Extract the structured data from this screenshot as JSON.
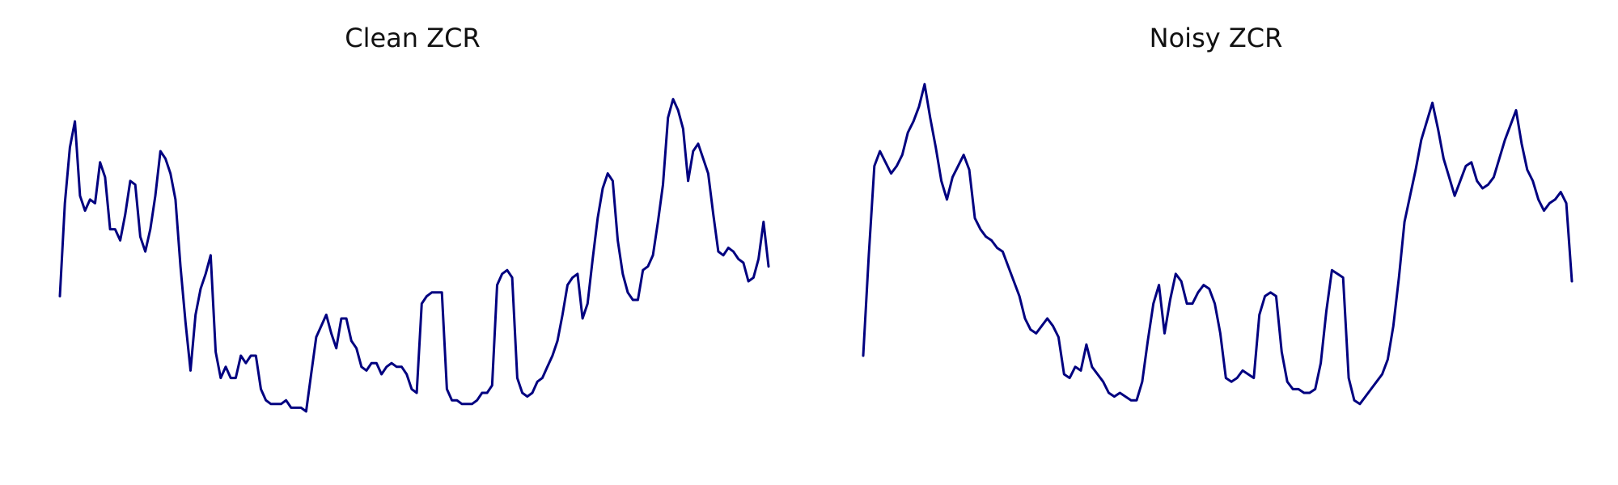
{
  "chart_data": [
    {
      "type": "line",
      "title": "Clean ZCR",
      "xlabel": "",
      "ylabel": "",
      "axes_visible": false,
      "grid": false,
      "line_color": "#000080",
      "x_range": [
        0,
        120
      ],
      "ylim": [
        0.0,
        1.0
      ],
      "values": [
        0.41,
        0.66,
        0.81,
        0.88,
        0.68,
        0.64,
        0.67,
        0.66,
        0.77,
        0.73,
        0.59,
        0.59,
        0.56,
        0.63,
        0.72,
        0.71,
        0.57,
        0.53,
        0.59,
        0.68,
        0.8,
        0.78,
        0.74,
        0.67,
        0.49,
        0.34,
        0.21,
        0.36,
        0.43,
        0.47,
        0.52,
        0.26,
        0.19,
        0.22,
        0.19,
        0.19,
        0.25,
        0.23,
        0.25,
        0.25,
        0.16,
        0.13,
        0.12,
        0.12,
        0.12,
        0.13,
        0.11,
        0.11,
        0.11,
        0.1,
        0.2,
        0.3,
        0.33,
        0.36,
        0.31,
        0.27,
        0.35,
        0.35,
        0.29,
        0.27,
        0.22,
        0.21,
        0.23,
        0.23,
        0.2,
        0.22,
        0.23,
        0.22,
        0.22,
        0.2,
        0.16,
        0.15,
        0.39,
        0.41,
        0.42,
        0.42,
        0.42,
        0.16,
        0.13,
        0.13,
        0.12,
        0.12,
        0.12,
        0.13,
        0.15,
        0.15,
        0.17,
        0.44,
        0.47,
        0.48,
        0.46,
        0.19,
        0.15,
        0.14,
        0.15,
        0.18,
        0.19,
        0.22,
        0.25,
        0.29,
        0.36,
        0.44,
        0.46,
        0.47,
        0.35,
        0.39,
        0.51,
        0.62,
        0.7,
        0.74,
        0.72,
        0.56,
        0.47,
        0.42,
        0.4,
        0.4,
        0.48,
        0.49,
        0.52,
        0.61,
        0.71,
        0.89,
        0.94,
        0.91,
        0.86,
        0.72,
        0.8,
        0.82,
        0.78,
        0.74,
        0.63,
        0.53,
        0.52,
        0.54,
        0.53,
        0.51,
        0.5,
        0.45,
        0.46,
        0.51,
        0.61,
        0.49
      ]
    },
    {
      "type": "line",
      "title": "Noisy ZCR",
      "xlabel": "",
      "ylabel": "",
      "axes_visible": false,
      "grid": false,
      "line_color": "#000080",
      "x_range": [
        0,
        120
      ],
      "ylim": [
        0.0,
        1.0
      ],
      "values": [
        0.25,
        0.52,
        0.76,
        0.8,
        0.77,
        0.74,
        0.76,
        0.79,
        0.85,
        0.88,
        0.92,
        0.98,
        0.89,
        0.81,
        0.72,
        0.67,
        0.73,
        0.76,
        0.79,
        0.75,
        0.62,
        0.59,
        0.57,
        0.56,
        0.54,
        0.53,
        0.49,
        0.45,
        0.41,
        0.35,
        0.32,
        0.31,
        0.33,
        0.35,
        0.33,
        0.3,
        0.2,
        0.19,
        0.22,
        0.21,
        0.28,
        0.22,
        0.2,
        0.18,
        0.15,
        0.14,
        0.15,
        0.14,
        0.13,
        0.13,
        0.18,
        0.29,
        0.39,
        0.44,
        0.31,
        0.4,
        0.47,
        0.45,
        0.39,
        0.39,
        0.42,
        0.44,
        0.43,
        0.39,
        0.31,
        0.19,
        0.18,
        0.19,
        0.21,
        0.2,
        0.19,
        0.36,
        0.41,
        0.42,
        0.41,
        0.26,
        0.18,
        0.16,
        0.16,
        0.15,
        0.15,
        0.16,
        0.23,
        0.37,
        0.48,
        0.47,
        0.46,
        0.19,
        0.13,
        0.12,
        0.14,
        0.16,
        0.18,
        0.2,
        0.24,
        0.33,
        0.46,
        0.61,
        0.68,
        0.75,
        0.83,
        0.88,
        0.93,
        0.86,
        0.78,
        0.73,
        0.68,
        0.72,
        0.76,
        0.77,
        0.72,
        0.7,
        0.71,
        0.73,
        0.78,
        0.83,
        0.87,
        0.91,
        0.82,
        0.75,
        0.72,
        0.67,
        0.64,
        0.66,
        0.67,
        0.69,
        0.66,
        0.45
      ]
    }
  ]
}
